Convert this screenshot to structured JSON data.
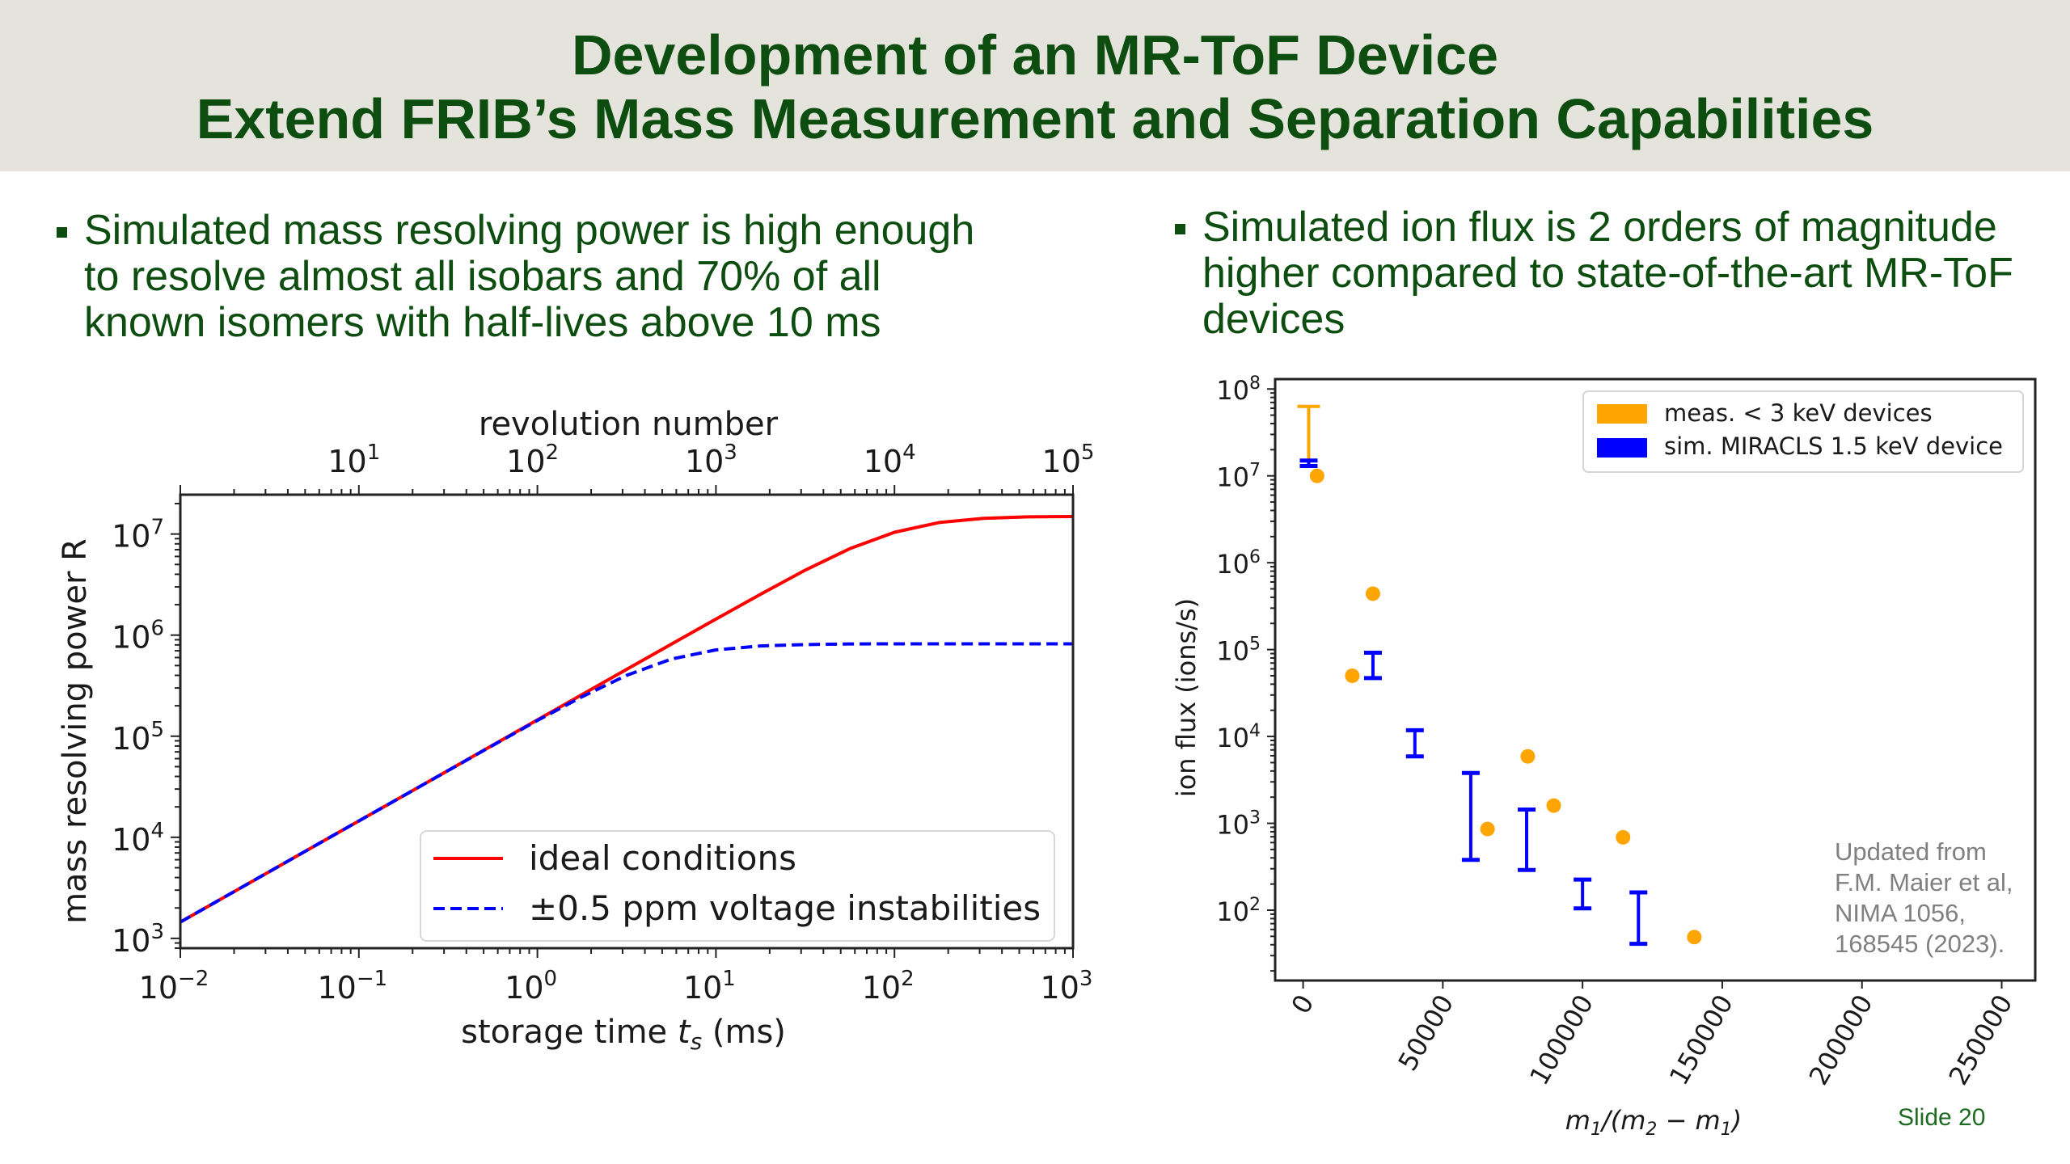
{
  "slide": {
    "title_lines": [
      "Development of an MR-ToF Device",
      "Extend FRIB’s Mass Measurement and Separation Capabilities"
    ],
    "left_bullet_lines": [
      "Simulated mass resolving power is high enough",
      "to resolve almost all isobars and 70% of all",
      "known isomers with half-lives above 10 ms"
    ],
    "right_bullet_lines": [
      "Simulated ion flux is 2 orders of magnitude",
      "higher compared to state-of-the-art MR-ToF",
      "devices"
    ],
    "note_lines": [
      "Updated from",
      "F.M. Maier et al,",
      "NIMA 1056,",
      "168545 (2023)."
    ],
    "slide_number": "Slide 20",
    "colors": {
      "title_green": "#0d4d10",
      "header_bg": "#e4e4dc",
      "ideal_red": "#ff0000",
      "unstable_blue": "#0000ff",
      "meas_orange": "#ffa500",
      "sim_blue": "#0000ff"
    }
  },
  "chart_data": [
    {
      "type": "line",
      "title": "",
      "xscale": "log",
      "yscale": "log",
      "xlabel": "storage time t_s (ms)",
      "xlabel_parts": {
        "pre": "storage time ",
        "var": "t",
        "sub": "s",
        "post": " (ms)"
      },
      "ylabel": "mass resolving power R",
      "top_xlabel": "revolution number",
      "xlim": [
        0.01,
        1000
      ],
      "ylim": [
        800,
        24500000
      ],
      "x_ticks": [
        {
          "value": 0.01,
          "base": "10",
          "exp": "−2"
        },
        {
          "value": 0.1,
          "base": "10",
          "exp": "−1"
        },
        {
          "value": 1,
          "base": "10",
          "exp": "0"
        },
        {
          "value": 10,
          "base": "10",
          "exp": "1"
        },
        {
          "value": 100,
          "base": "10",
          "exp": "2"
        },
        {
          "value": 1000,
          "base": "10",
          "exp": "3"
        }
      ],
      "y_ticks": [
        {
          "value": 1000,
          "base": "10",
          "exp": "3"
        },
        {
          "value": 10000,
          "base": "10",
          "exp": "4"
        },
        {
          "value": 100000,
          "base": "10",
          "exp": "5"
        },
        {
          "value": 1000000,
          "base": "10",
          "exp": "6"
        },
        {
          "value": 10000000,
          "base": "10",
          "exp": "7"
        }
      ],
      "top_axis": {
        "label": "revolution number",
        "revolutions_per_ms": 100,
        "xlim": [
          1,
          100000
        ],
        "ticks": [
          {
            "value": 10,
            "base": "10",
            "exp": "1"
          },
          {
            "value": 100,
            "base": "10",
            "exp": "2"
          },
          {
            "value": 1000,
            "base": "10",
            "exp": "3"
          },
          {
            "value": 10000,
            "base": "10",
            "exp": "4"
          },
          {
            "value": 100000,
            "base": "10",
            "exp": "5"
          }
        ]
      },
      "x": [
        0.01,
        0.0178,
        0.0316,
        0.0562,
        0.1,
        0.178,
        0.316,
        0.562,
        1,
        1.78,
        3.16,
        5.62,
        10,
        17.8,
        31.6,
        56.2,
        100,
        178,
        316,
        562,
        1000
      ],
      "series": [
        {
          "name": "ideal conditions",
          "style": "solid",
          "color": "#ff0000",
          "values": [
            1450,
            2580,
            4580,
            8150,
            14500,
            25800,
            45800,
            81500,
            145000,
            258000,
            458000,
            813000,
            1440000,
            2540000,
            4390000,
            7160000,
            10400000,
            13000000,
            14300000,
            14800000,
            14900000
          ]
        },
        {
          "name": "±0.5 ppm voltage instabilities",
          "style": "dashed",
          "color": "#0000ff",
          "values": [
            1450,
            2580,
            4580,
            8150,
            14500,
            25800,
            45700,
            81100,
            143000,
            246000,
            400000,
            579000,
            714000,
            782000,
            807000,
            818000,
            820000,
            820000,
            820000,
            820000,
            820000
          ]
        }
      ],
      "legend": {
        "position": "bottom-right",
        "entries": [
          "ideal conditions",
          "±0.5 ppm voltage instabilities"
        ]
      },
      "grid": false
    },
    {
      "type": "scatter",
      "title": "",
      "xscale": "linear",
      "yscale": "log",
      "xlabel": "m1/(m2 − m1)",
      "ylabel": "ion flux (ions/s)",
      "xlim": [
        -10000,
        262000
      ],
      "ylim": [
        15.5,
        130000000
      ],
      "x_ticks": [
        "0",
        "50000",
        "100000",
        "150000",
        "200000",
        "250000"
      ],
      "x_tick_values": [
        0,
        50000,
        100000,
        150000,
        200000,
        250000
      ],
      "y_ticks": [
        {
          "value": 100,
          "base": "10",
          "exp": "2"
        },
        {
          "value": 1000,
          "base": "10",
          "exp": "3"
        },
        {
          "value": 10000,
          "base": "10",
          "exp": "4"
        },
        {
          "value": 100000,
          "base": "10",
          "exp": "5"
        },
        {
          "value": 1000000,
          "base": "10",
          "exp": "6"
        },
        {
          "value": 10000000,
          "base": "10",
          "exp": "7"
        },
        {
          "value": 100000000,
          "base": "10",
          "exp": "8"
        }
      ],
      "series": [
        {
          "name": "meas. < 3 keV devices",
          "color": "#ffa500",
          "points": [
            {
              "x": 5000,
              "y": 10000000
            },
            {
              "x": 17600,
              "y": 50000
            },
            {
              "x": 25000,
              "y": 440000
            },
            {
              "x": 66000,
              "y": 860
            },
            {
              "x": 80400,
              "y": 5900
            },
            {
              "x": 89700,
              "y": 1600
            },
            {
              "x": 114500,
              "y": 690
            },
            {
              "x": 140000,
              "y": 49
            }
          ],
          "ranges": [
            {
              "x": 2000,
              "low": 14500000,
              "high": 63000000
            }
          ]
        },
        {
          "name": "sim. MIRACLS 1.5 keV device",
          "color": "#0000ff",
          "ranges": [
            {
              "x": 2000,
              "low": 13000000,
              "high": 15000000
            },
            {
              "x": 25000,
              "low": 47000,
              "high": 92000
            },
            {
              "x": 40000,
              "low": 5900,
              "high": 11800
            },
            {
              "x": 60000,
              "low": 380,
              "high": 3800
            },
            {
              "x": 80000,
              "low": 290,
              "high": 1440
            },
            {
              "x": 100000,
              "low": 105,
              "high": 225
            },
            {
              "x": 120000,
              "low": 41,
              "high": 160
            }
          ]
        }
      ],
      "legend": {
        "position": "top-right",
        "entries": [
          "meas. < 3 keV devices",
          "sim. MIRACLS 1.5 keV device"
        ]
      },
      "grid": false
    }
  ]
}
